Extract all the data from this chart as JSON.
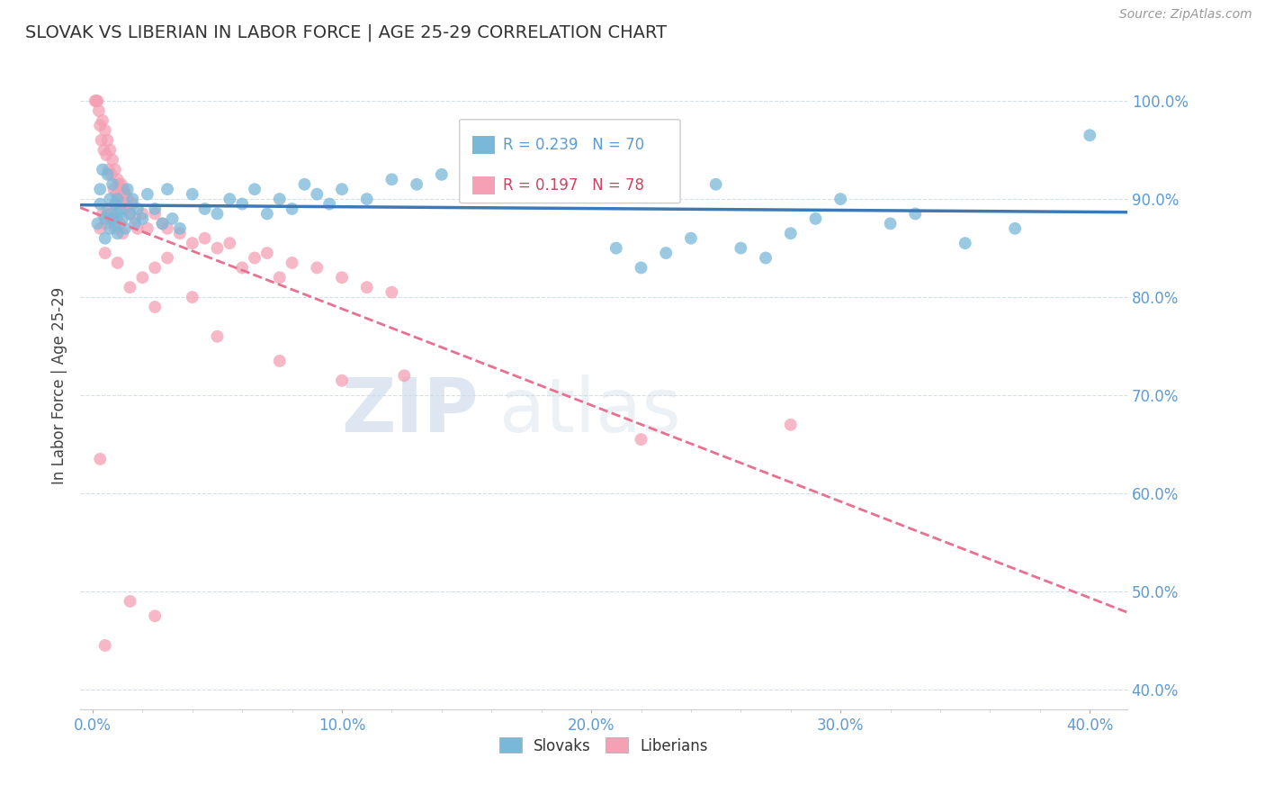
{
  "title": "SLOVAK VS LIBERIAN IN LABOR FORCE | AGE 25-29 CORRELATION CHART",
  "source": "Source: ZipAtlas.com",
  "ylabel": "In Labor Force | Age 25-29",
  "x_tick_values": [
    0.0,
    5.0,
    10.0,
    15.0,
    20.0,
    25.0,
    30.0,
    35.0,
    40.0
  ],
  "x_tick_labels_show": [
    0.0,
    10.0,
    20.0,
    30.0,
    40.0
  ],
  "y_tick_values": [
    40.0,
    50.0,
    60.0,
    70.0,
    80.0,
    90.0,
    100.0
  ],
  "xlim": [
    -0.5,
    41.5
  ],
  "ylim": [
    38.0,
    104.0
  ],
  "slovak_color": "#7ab8d9",
  "liberian_color": "#f4a0b5",
  "slovak_R": 0.239,
  "slovak_N": 70,
  "liberian_R": 0.197,
  "liberian_N": 78,
  "title_color": "#333333",
  "axis_tick_color": "#5b9bd5",
  "source_color": "#999999",
  "watermark_color": "#d8e8f0",
  "grid_color": "#d0dfe8",
  "trend_blue": "#3d7ab5",
  "trend_pink": "#e87090",
  "slovak_scatter": [
    [
      0.2,
      87.5
    ],
    [
      0.3,
      91.0
    ],
    [
      0.3,
      89.5
    ],
    [
      0.4,
      93.0
    ],
    [
      0.5,
      88.0
    ],
    [
      0.5,
      86.0
    ],
    [
      0.6,
      92.5
    ],
    [
      0.6,
      88.5
    ],
    [
      0.7,
      90.0
    ],
    [
      0.7,
      87.0
    ],
    [
      0.8,
      91.5
    ],
    [
      0.8,
      88.0
    ],
    [
      0.9,
      89.5
    ],
    [
      0.9,
      87.5
    ],
    [
      1.0,
      90.0
    ],
    [
      1.0,
      88.5
    ],
    [
      1.0,
      86.5
    ],
    [
      1.1,
      89.0
    ],
    [
      1.2,
      88.0
    ],
    [
      1.3,
      87.0
    ],
    [
      1.4,
      91.0
    ],
    [
      1.5,
      88.5
    ],
    [
      1.6,
      90.0
    ],
    [
      1.7,
      87.5
    ],
    [
      1.8,
      89.0
    ],
    [
      2.0,
      88.0
    ],
    [
      2.2,
      90.5
    ],
    [
      2.5,
      89.0
    ],
    [
      2.8,
      87.5
    ],
    [
      3.0,
      91.0
    ],
    [
      3.2,
      88.0
    ],
    [
      3.5,
      87.0
    ],
    [
      4.0,
      90.5
    ],
    [
      4.5,
      89.0
    ],
    [
      5.0,
      88.5
    ],
    [
      5.5,
      90.0
    ],
    [
      6.0,
      89.5
    ],
    [
      6.5,
      91.0
    ],
    [
      7.0,
      88.5
    ],
    [
      7.5,
      90.0
    ],
    [
      8.0,
      89.0
    ],
    [
      8.5,
      91.5
    ],
    [
      9.0,
      90.5
    ],
    [
      9.5,
      89.5
    ],
    [
      10.0,
      91.0
    ],
    [
      11.0,
      90.0
    ],
    [
      12.0,
      92.0
    ],
    [
      13.0,
      91.5
    ],
    [
      14.0,
      92.5
    ],
    [
      15.0,
      93.0
    ],
    [
      16.0,
      91.0
    ],
    [
      17.0,
      93.5
    ],
    [
      18.0,
      92.0
    ],
    [
      19.0,
      94.0
    ],
    [
      20.0,
      92.5
    ],
    [
      21.0,
      85.0
    ],
    [
      22.0,
      83.0
    ],
    [
      23.0,
      84.5
    ],
    [
      24.0,
      86.0
    ],
    [
      25.0,
      91.5
    ],
    [
      26.0,
      85.0
    ],
    [
      27.0,
      84.0
    ],
    [
      28.0,
      86.5
    ],
    [
      29.0,
      88.0
    ],
    [
      30.0,
      90.0
    ],
    [
      32.0,
      87.5
    ],
    [
      33.0,
      88.5
    ],
    [
      35.0,
      85.5
    ],
    [
      37.0,
      87.0
    ],
    [
      40.0,
      96.5
    ]
  ],
  "liberian_scatter": [
    [
      0.1,
      100.0
    ],
    [
      0.15,
      100.0
    ],
    [
      0.2,
      100.0
    ],
    [
      0.25,
      99.0
    ],
    [
      0.3,
      97.5
    ],
    [
      0.35,
      96.0
    ],
    [
      0.4,
      98.0
    ],
    [
      0.45,
      95.0
    ],
    [
      0.5,
      97.0
    ],
    [
      0.55,
      94.5
    ],
    [
      0.6,
      96.0
    ],
    [
      0.65,
      93.0
    ],
    [
      0.7,
      95.0
    ],
    [
      0.75,
      92.5
    ],
    [
      0.8,
      94.0
    ],
    [
      0.85,
      91.0
    ],
    [
      0.9,
      93.0
    ],
    [
      0.95,
      90.5
    ],
    [
      1.0,
      92.0
    ],
    [
      1.05,
      91.5
    ],
    [
      1.1,
      90.0
    ],
    [
      1.15,
      91.5
    ],
    [
      1.2,
      89.5
    ],
    [
      1.25,
      91.0
    ],
    [
      1.3,
      90.5
    ],
    [
      1.35,
      89.0
    ],
    [
      1.4,
      90.0
    ],
    [
      1.5,
      88.5
    ],
    [
      1.6,
      89.5
    ],
    [
      1.7,
      88.0
    ],
    [
      1.8,
      87.0
    ],
    [
      2.0,
      88.5
    ],
    [
      2.2,
      87.0
    ],
    [
      2.5,
      88.5
    ],
    [
      2.8,
      87.5
    ],
    [
      3.0,
      87.0
    ],
    [
      3.5,
      86.5
    ],
    [
      4.0,
      85.5
    ],
    [
      4.5,
      86.0
    ],
    [
      5.0,
      85.0
    ],
    [
      5.5,
      85.5
    ],
    [
      6.0,
      83.0
    ],
    [
      6.5,
      84.0
    ],
    [
      7.0,
      84.5
    ],
    [
      7.5,
      82.0
    ],
    [
      8.0,
      83.5
    ],
    [
      9.0,
      83.0
    ],
    [
      10.0,
      82.0
    ],
    [
      11.0,
      81.0
    ],
    [
      12.0,
      80.5
    ],
    [
      0.3,
      87.0
    ],
    [
      0.4,
      88.5
    ],
    [
      0.5,
      87.5
    ],
    [
      0.6,
      89.0
    ],
    [
      0.7,
      88.0
    ],
    [
      0.8,
      88.5
    ],
    [
      0.9,
      87.0
    ],
    [
      1.0,
      88.0
    ],
    [
      1.1,
      87.5
    ],
    [
      1.2,
      86.5
    ],
    [
      2.5,
      79.0
    ],
    [
      5.0,
      76.0
    ],
    [
      7.5,
      73.5
    ],
    [
      10.0,
      71.5
    ],
    [
      12.5,
      72.0
    ],
    [
      0.5,
      84.5
    ],
    [
      1.0,
      83.5
    ],
    [
      2.0,
      82.0
    ],
    [
      3.0,
      84.0
    ],
    [
      1.5,
      81.0
    ],
    [
      2.5,
      83.0
    ],
    [
      4.0,
      80.0
    ],
    [
      0.3,
      63.5
    ],
    [
      1.5,
      49.0
    ],
    [
      2.5,
      47.5
    ],
    [
      0.5,
      44.5
    ],
    [
      22.0,
      65.5
    ],
    [
      28.0,
      67.0
    ]
  ]
}
